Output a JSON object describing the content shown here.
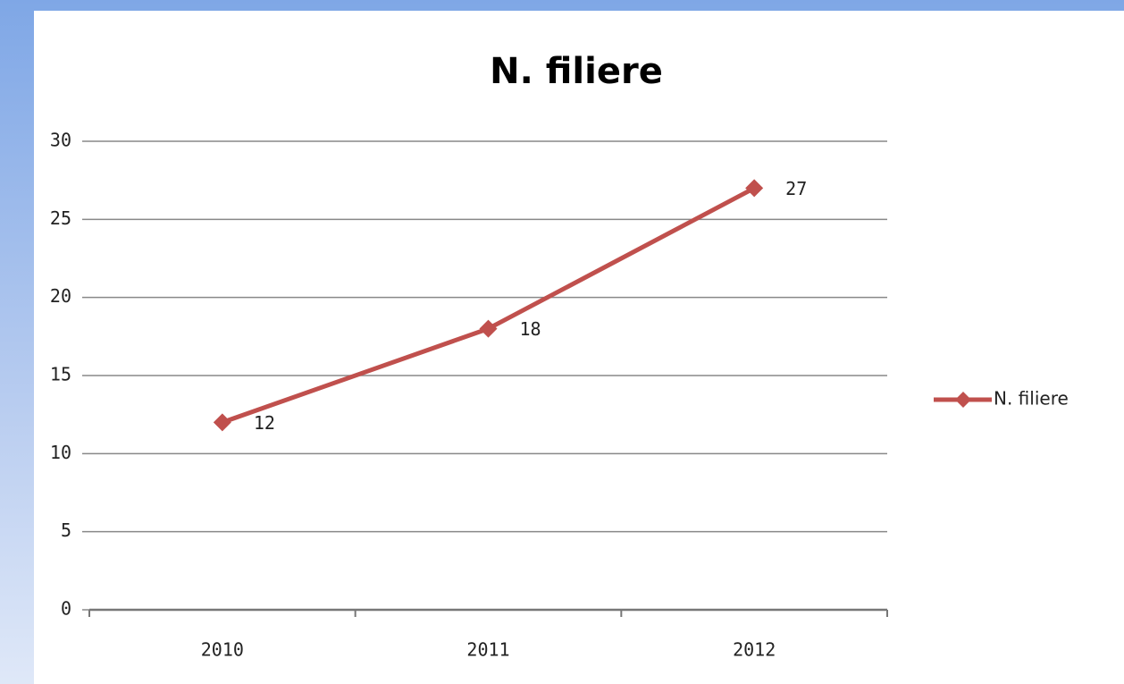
{
  "chart_data": {
    "type": "line",
    "title": "N. filiere",
    "categories": [
      "2010",
      "2011",
      "2012"
    ],
    "series": [
      {
        "name": "N. filiere",
        "color": "#c0504d",
        "values": [
          12,
          18,
          27
        ]
      }
    ],
    "ylim": [
      0,
      30
    ],
    "yticks": [
      0,
      5,
      10,
      15,
      20,
      25,
      30
    ],
    "grid": true,
    "legend": "right"
  }
}
